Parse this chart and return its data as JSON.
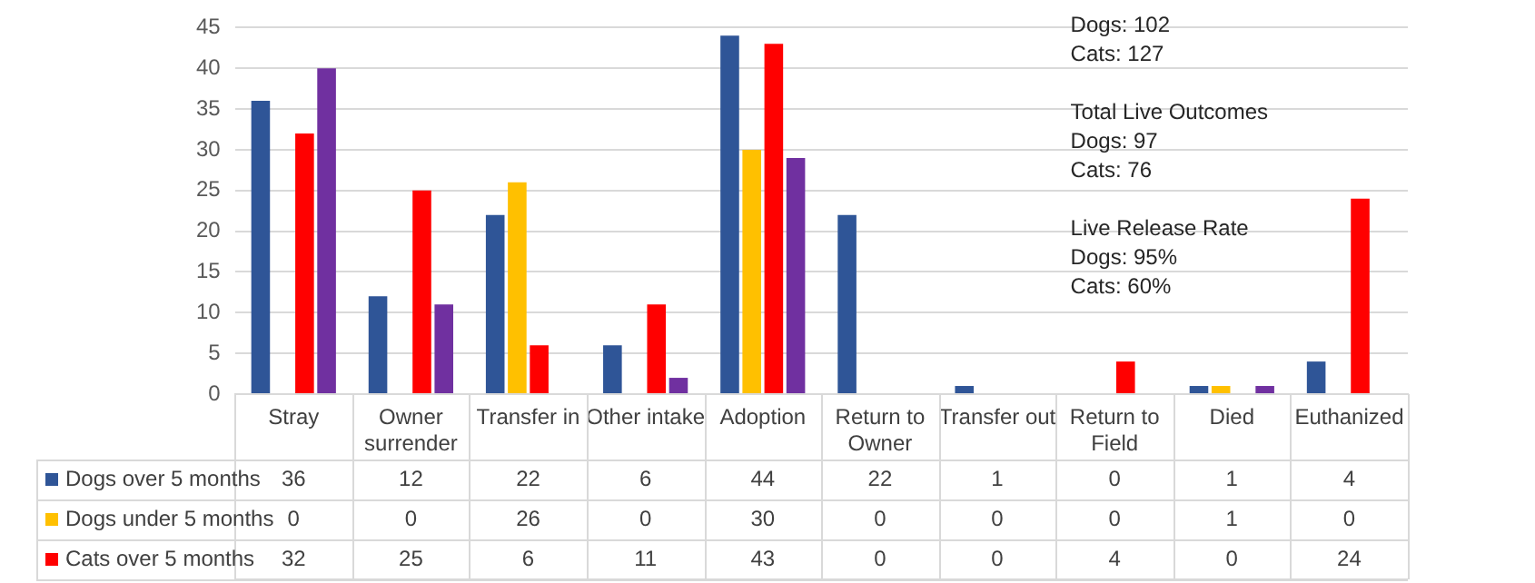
{
  "chart_data": {
    "type": "bar",
    "categories": [
      "Stray",
      "Owner surrender",
      "Transfer in",
      "Other intake",
      "Adoption",
      "Return to Owner",
      "Transfer out",
      "Return to Field",
      "Died",
      "Euthanized"
    ],
    "series": [
      {
        "name": "Dogs over 5 months",
        "color": "#2f5597",
        "values": [
          36,
          12,
          22,
          6,
          44,
          22,
          1,
          0,
          1,
          4
        ],
        "value_labels": [
          "36",
          "12",
          "22",
          "6",
          "44",
          "22",
          "1",
          "0",
          "1",
          "4"
        ]
      },
      {
        "name": "Dogs under 5 months",
        "color": "#ffc000",
        "values": [
          0,
          0,
          26,
          0,
          30,
          0,
          0,
          0,
          1,
          0
        ],
        "value_labels": [
          "0",
          "0",
          "26",
          "0",
          "30",
          "0",
          "0",
          "0",
          "1",
          "0"
        ]
      },
      {
        "name": "Cats over 5 months",
        "color": "#ff0000",
        "values": [
          32,
          25,
          6,
          11,
          43,
          0,
          0,
          4,
          0,
          24
        ],
        "value_labels": [
          "32",
          "25",
          "6",
          "11",
          "43",
          "0",
          "0",
          "4",
          "0",
          "24"
        ]
      },
      {
        "color": "#7030a0",
        "values": [
          40,
          11,
          0,
          2,
          29,
          0,
          0,
          0,
          1,
          0
        ]
      }
    ],
    "ylim": [
      0,
      45
    ],
    "yticks": [
      0,
      5,
      10,
      15,
      20,
      25,
      30,
      35,
      40,
      45
    ],
    "grid": "y",
    "legend": "bottom",
    "annotations": [
      "Dogs: 102\nCats: 127",
      "Total Live Outcomes\nDogs: 97\nCats: 76",
      "Live Release Rate\nDogs: 95%\nCats: 60%"
    ]
  }
}
